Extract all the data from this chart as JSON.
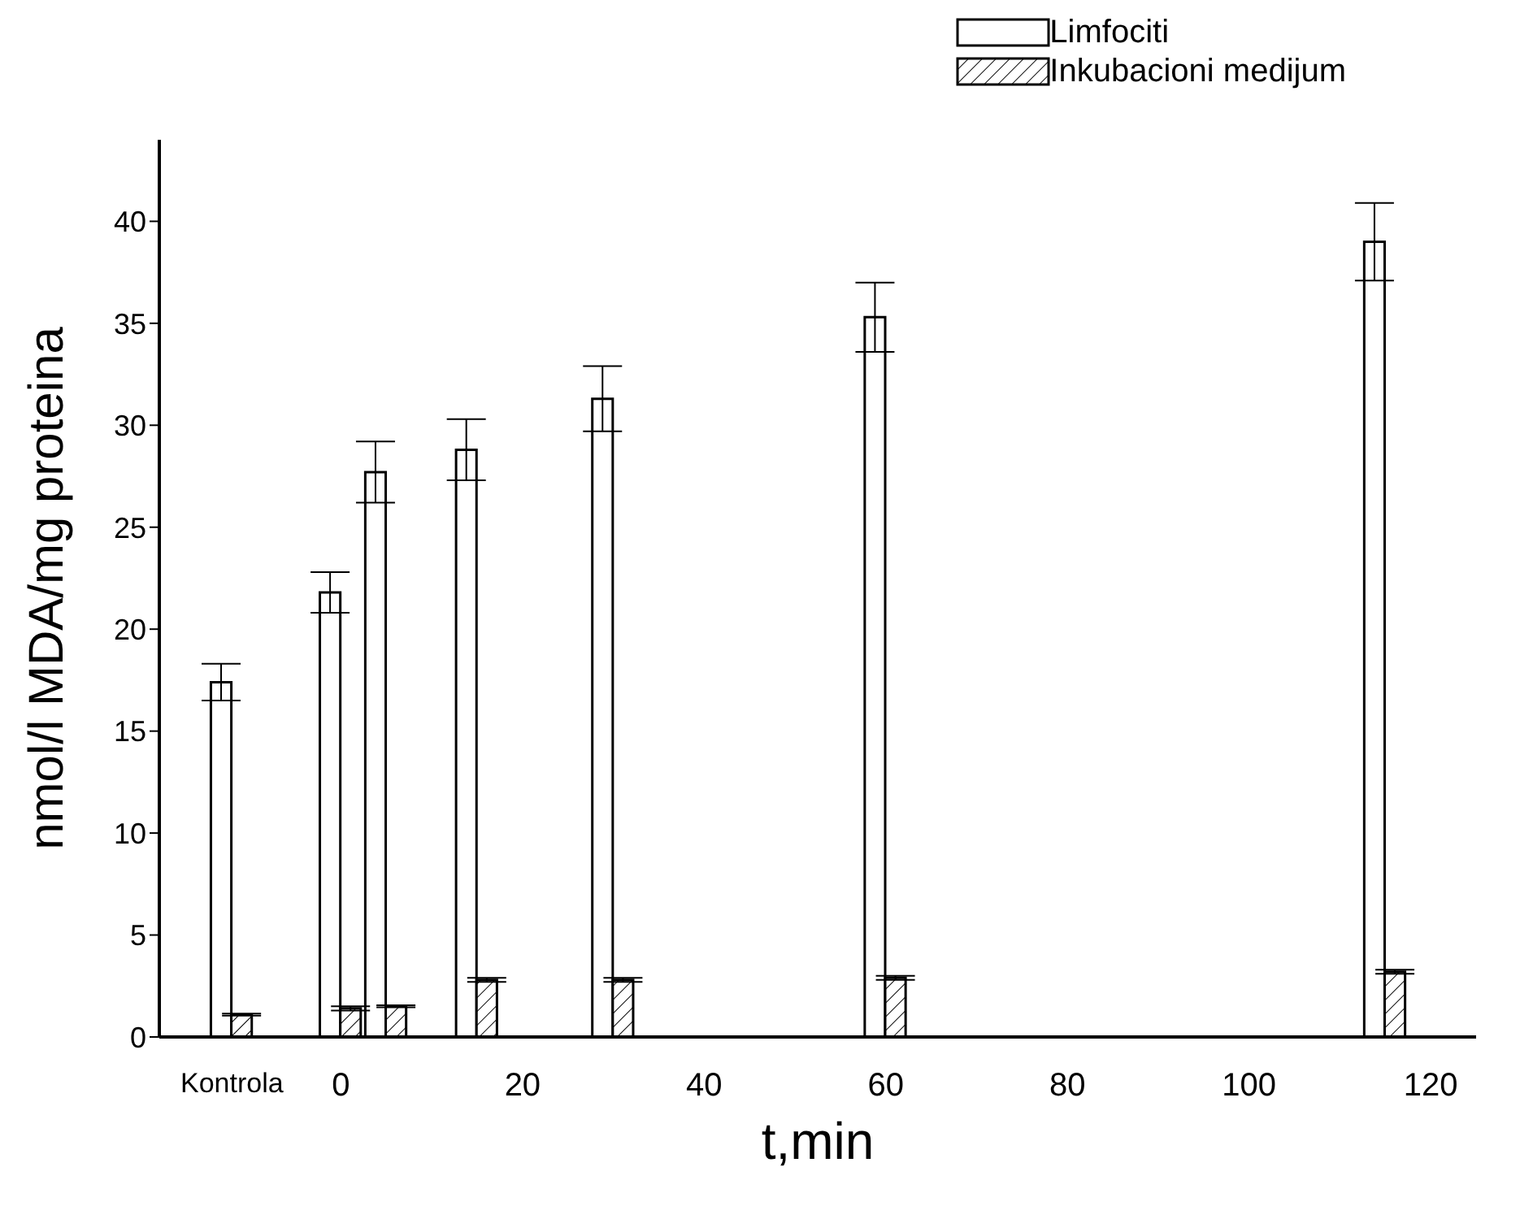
{
  "chart_data": {
    "type": "bar",
    "xlabel": "t,min",
    "ylabel": "nmol/l MDA/mg proteina",
    "x": [
      -12,
      0,
      5,
      15,
      30,
      60,
      115
    ],
    "series": [
      {
        "name": "Limfociti",
        "color": "#ffffff",
        "values": [
          17.4,
          21.8,
          27.7,
          28.8,
          31.3,
          35.3,
          39.0
        ],
        "errors": [
          0.9,
          1.0,
          1.5,
          1.5,
          1.6,
          1.7,
          1.9
        ]
      },
      {
        "name": "Inkubacioni medijum",
        "color": "#000000",
        "values": [
          1.1,
          1.4,
          1.5,
          2.8,
          2.8,
          2.9,
          3.2
        ],
        "errors": [
          0.05,
          0.1,
          0.05,
          0.1,
          0.1,
          0.1,
          0.1
        ]
      }
    ],
    "xlim": [
      -20,
      125
    ],
    "xticks": [
      {
        "value": -12,
        "label": "Kontrola"
      },
      0,
      20,
      40,
      60,
      80,
      100,
      120
    ],
    "ylim": [
      0,
      44
    ],
    "yticks": [
      0,
      5,
      10,
      15,
      20,
      25,
      30,
      35,
      40
    ],
    "grid": false,
    "legend": "top right"
  }
}
